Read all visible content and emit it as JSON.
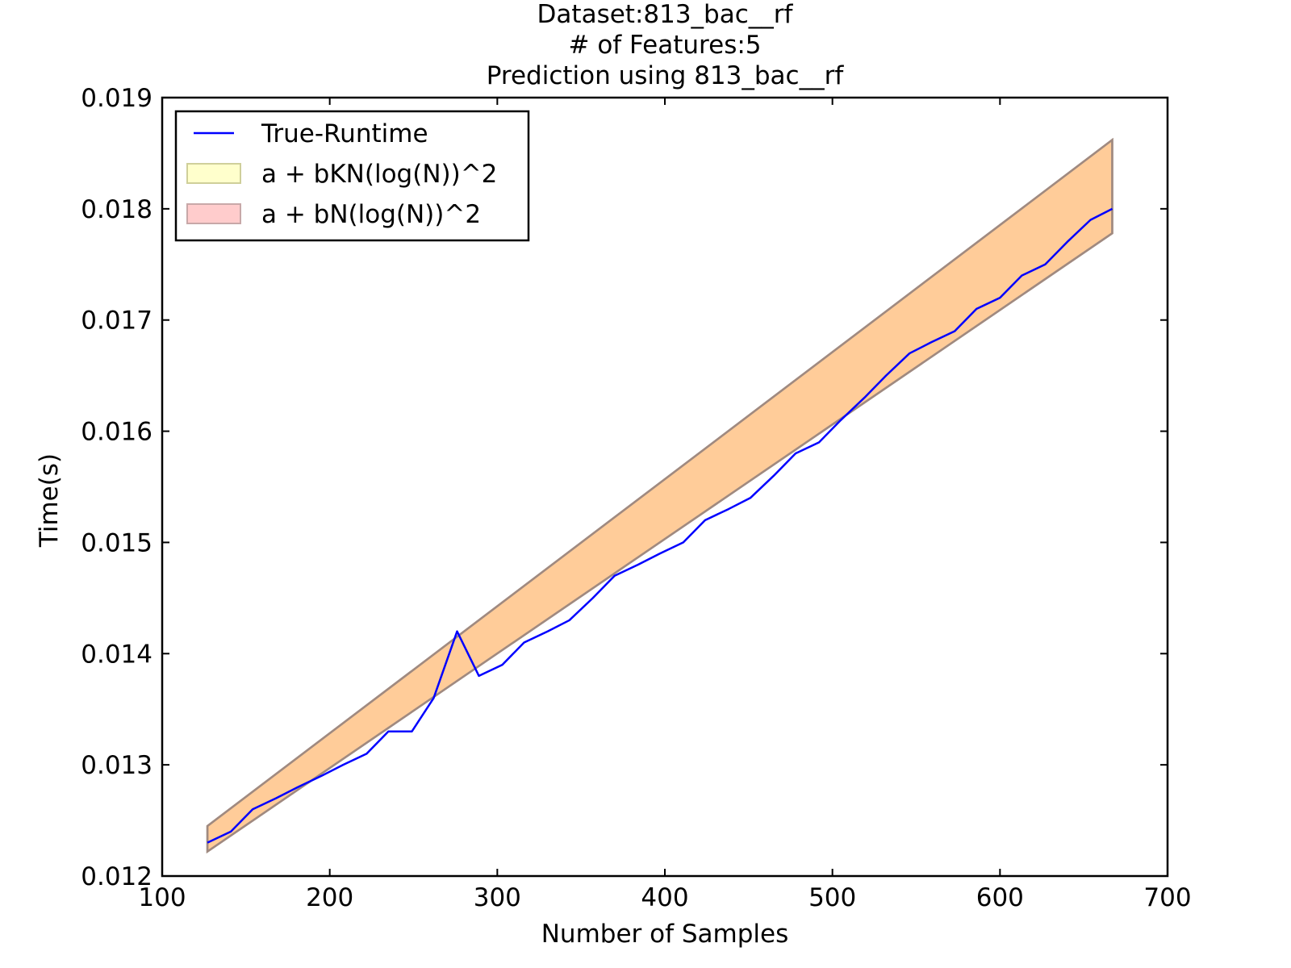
{
  "chart_data": {
    "type": "line",
    "title_lines": [
      "Dataset:813_bac__rf",
      "# of Features:5",
      "Prediction using 813_bac__rf"
    ],
    "xlabel": "Number of Samples",
    "ylabel": "Time(s)",
    "xlim": [
      100,
      700
    ],
    "ylim": [
      0.012,
      0.019
    ],
    "xticks": [
      100,
      200,
      300,
      400,
      500,
      600,
      700
    ],
    "yticks": [
      0.012,
      0.013,
      0.014,
      0.015,
      0.016,
      0.017,
      0.018,
      0.019
    ],
    "xtick_labels": [
      "100",
      "200",
      "300",
      "400",
      "500",
      "600",
      "700"
    ],
    "ytick_labels": [
      "0.012",
      "0.013",
      "0.014",
      "0.015",
      "0.016",
      "0.017",
      "0.018",
      "0.019"
    ],
    "grid": false,
    "legend_position": "top-left",
    "legend": [
      "True-Runtime",
      "a + bKN(log(N))^2",
      "a + bN(log(N))^2"
    ],
    "line_series": {
      "name": "True-Runtime",
      "color": "#0000ff",
      "x": [
        127,
        141,
        154,
        168,
        181,
        195,
        208,
        222,
        235,
        249,
        262,
        276,
        289,
        303,
        316,
        330,
        343,
        357,
        370,
        384,
        397,
        411,
        424,
        438,
        451,
        465,
        478,
        492,
        505,
        519,
        532,
        546,
        559,
        573,
        586,
        600,
        613,
        627,
        640,
        654,
        667
      ],
      "y": [
        0.0123,
        0.0124,
        0.0126,
        0.0127,
        0.0128,
        0.0129,
        0.013,
        0.0131,
        0.0133,
        0.0133,
        0.0136,
        0.0142,
        0.0138,
        0.0139,
        0.0141,
        0.0142,
        0.0143,
        0.0145,
        0.0147,
        0.0148,
        0.0149,
        0.015,
        0.0152,
        0.0153,
        0.0154,
        0.0156,
        0.0158,
        0.0159,
        0.0161,
        0.0163,
        0.0165,
        0.0167,
        0.0168,
        0.0169,
        0.0171,
        0.0172,
        0.0174,
        0.0175,
        0.0177,
        0.0179,
        0.018
      ]
    },
    "bands": [
      {
        "name": "a + bKN(log(N))^2",
        "fill": "#ffff99",
        "x": [
          127,
          667
        ],
        "lower": [
          0.01222,
          0.01778
        ],
        "upper": [
          0.01245,
          0.01862
        ]
      },
      {
        "name": "a + bN(log(N))^2",
        "fill": "#ff9999",
        "x": [
          127,
          667
        ],
        "lower": [
          0.01222,
          0.01778
        ],
        "upper": [
          0.01245,
          0.01862
        ]
      }
    ],
    "band_overlap_color": "#ffcc99",
    "band_edge_color": "#a08a80"
  }
}
